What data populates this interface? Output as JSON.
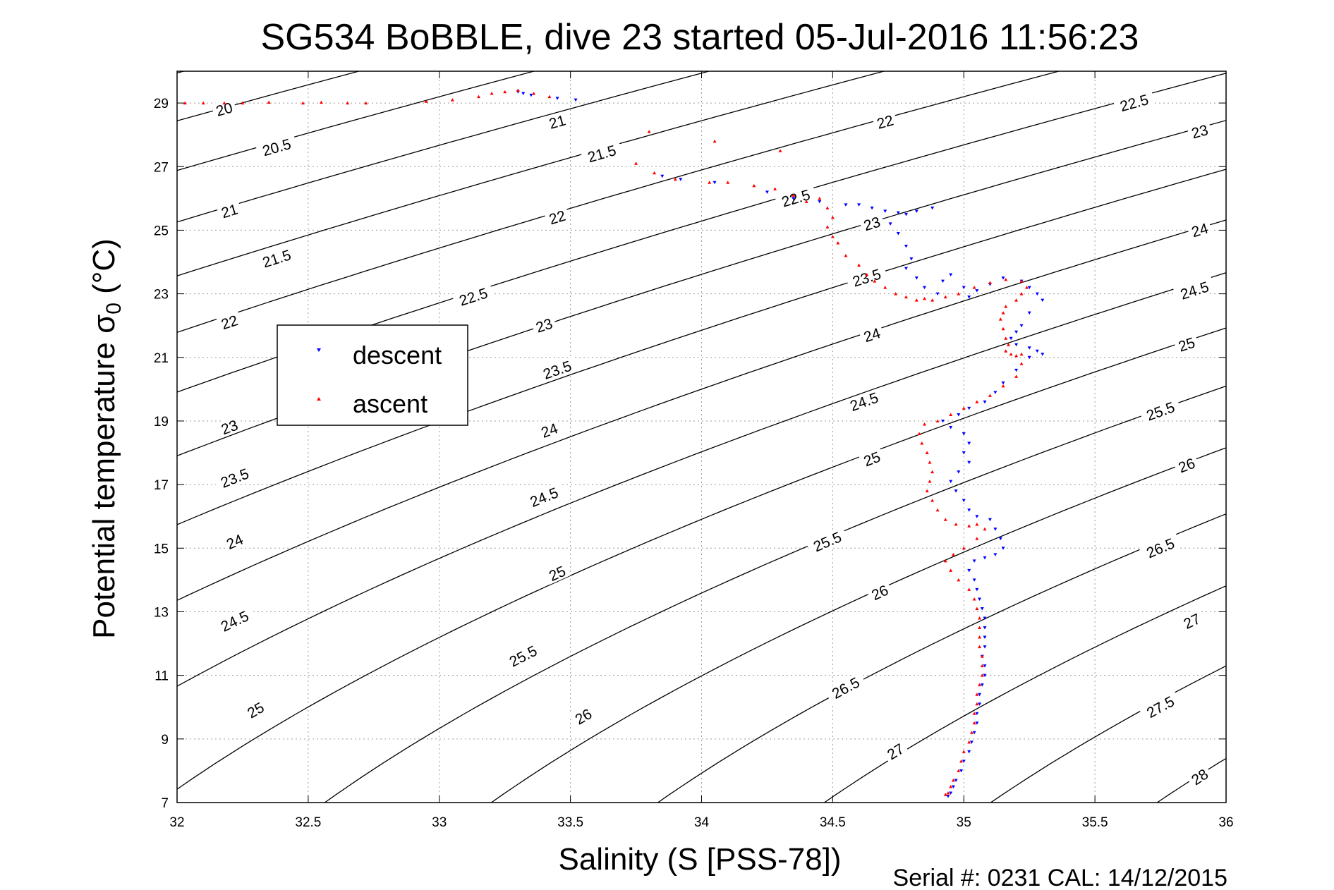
{
  "chart_data": {
    "type": "scatter",
    "title": "SG534 BoBBLE, dive 23 started 05-Jul-2016 11:56:23",
    "xlabel": "Salinity (S [PSS-78])",
    "ylabel": "Potential temperature σ",
    "ylabel_sub": "0",
    "ylabel_unit": " (°C)",
    "xlim": [
      32,
      36
    ],
    "ylim": [
      7,
      30
    ],
    "xticks": [
      "32",
      "32.5",
      "33",
      "33.5",
      "34",
      "34.5",
      "35",
      "35.5",
      "36"
    ],
    "yticks": [
      "7",
      "9",
      "11",
      "13",
      "15",
      "17",
      "19",
      "21",
      "23",
      "25",
      "27",
      "29"
    ],
    "grid": true,
    "legend_position": "upper-left",
    "series": [
      {
        "name": "descent",
        "color": "#0000ff",
        "marker": "triangle-down",
        "points": [
          [
            33.3,
            29.35
          ],
          [
            33.32,
            29.3
          ],
          [
            33.35,
            29.25
          ],
          [
            33.45,
            29.15
          ],
          [
            33.52,
            29.1
          ],
          [
            33.85,
            26.7
          ],
          [
            33.92,
            26.6
          ],
          [
            34.05,
            26.5
          ],
          [
            34.25,
            26.2
          ],
          [
            34.35,
            26.0
          ],
          [
            34.45,
            25.9
          ],
          [
            34.55,
            25.8
          ],
          [
            34.6,
            25.8
          ],
          [
            34.65,
            25.7
          ],
          [
            34.7,
            25.6
          ],
          [
            34.75,
            25.55
          ],
          [
            34.82,
            25.6
          ],
          [
            34.88,
            25.7
          ],
          [
            34.78,
            25.5
          ],
          [
            34.72,
            25.2
          ],
          [
            34.75,
            24.9
          ],
          [
            34.78,
            24.5
          ],
          [
            34.8,
            24.1
          ],
          [
            34.78,
            23.8
          ],
          [
            34.82,
            23.5
          ],
          [
            34.85,
            23.2
          ],
          [
            34.9,
            23.0
          ],
          [
            34.92,
            23.4
          ],
          [
            34.95,
            23.6
          ],
          [
            35.0,
            23.2
          ],
          [
            35.02,
            22.9
          ],
          [
            35.05,
            23.1
          ],
          [
            35.1,
            23.3
          ],
          [
            35.15,
            23.5
          ],
          [
            35.22,
            23.4
          ],
          [
            35.25,
            23.2
          ],
          [
            35.28,
            23.0
          ],
          [
            35.3,
            22.8
          ],
          [
            35.25,
            22.4
          ],
          [
            35.22,
            22.0
          ],
          [
            35.2,
            21.8
          ],
          [
            35.18,
            21.6
          ],
          [
            35.2,
            21.4
          ],
          [
            35.25,
            21.3
          ],
          [
            35.28,
            21.2
          ],
          [
            35.3,
            21.1
          ],
          [
            35.25,
            21.0
          ],
          [
            35.2,
            20.6
          ],
          [
            35.15,
            20.2
          ],
          [
            35.12,
            19.9
          ],
          [
            35.08,
            19.6
          ],
          [
            35.02,
            19.4
          ],
          [
            34.98,
            19.2
          ],
          [
            34.92,
            19.0
          ],
          [
            34.95,
            18.8
          ],
          [
            35.0,
            18.6
          ],
          [
            35.02,
            18.3
          ],
          [
            35.0,
            18.0
          ],
          [
            35.02,
            17.7
          ],
          [
            34.98,
            17.4
          ],
          [
            34.95,
            17.1
          ],
          [
            34.97,
            16.8
          ],
          [
            35.0,
            16.5
          ],
          [
            35.02,
            16.2
          ],
          [
            35.05,
            16.0
          ],
          [
            35.1,
            15.9
          ],
          [
            35.12,
            15.6
          ],
          [
            35.14,
            15.3
          ],
          [
            35.15,
            15.0
          ],
          [
            35.12,
            14.8
          ],
          [
            35.08,
            14.7
          ],
          [
            35.04,
            14.6
          ],
          [
            35.02,
            14.3
          ],
          [
            35.04,
            14.0
          ],
          [
            35.05,
            13.7
          ],
          [
            35.06,
            13.4
          ],
          [
            35.07,
            13.1
          ],
          [
            35.08,
            12.8
          ],
          [
            35.08,
            12.5
          ],
          [
            35.08,
            12.2
          ],
          [
            35.08,
            11.9
          ],
          [
            35.07,
            11.6
          ],
          [
            35.08,
            11.3
          ],
          [
            35.08,
            11.0
          ],
          [
            35.07,
            10.7
          ],
          [
            35.06,
            10.4
          ],
          [
            35.06,
            10.1
          ],
          [
            35.05,
            9.8
          ],
          [
            35.05,
            9.5
          ],
          [
            35.04,
            9.2
          ],
          [
            35.03,
            8.9
          ],
          [
            35.02,
            8.6
          ],
          [
            35.0,
            8.3
          ],
          [
            34.99,
            8.0
          ],
          [
            34.97,
            7.7
          ],
          [
            34.96,
            7.5
          ],
          [
            34.95,
            7.3
          ],
          [
            34.94,
            7.2
          ]
        ]
      },
      {
        "name": "ascent",
        "color": "#ff0000",
        "marker": "triangle-up",
        "points": [
          [
            32.03,
            29.0
          ],
          [
            32.1,
            29.0
          ],
          [
            32.18,
            29.0
          ],
          [
            32.25,
            29.0
          ],
          [
            32.35,
            29.02
          ],
          [
            32.48,
            29.0
          ],
          [
            32.55,
            29.02
          ],
          [
            32.65,
            29.0
          ],
          [
            32.72,
            29.0
          ],
          [
            32.95,
            29.05
          ],
          [
            33.05,
            29.1
          ],
          [
            33.15,
            29.2
          ],
          [
            33.2,
            29.3
          ],
          [
            33.25,
            29.35
          ],
          [
            33.3,
            29.4
          ],
          [
            33.36,
            29.3
          ],
          [
            33.42,
            29.2
          ],
          [
            33.75,
            27.1
          ],
          [
            33.8,
            28.1
          ],
          [
            33.82,
            26.8
          ],
          [
            33.9,
            26.6
          ],
          [
            34.03,
            26.5
          ],
          [
            34.05,
            27.8
          ],
          [
            34.1,
            26.5
          ],
          [
            34.2,
            26.4
          ],
          [
            34.28,
            26.3
          ],
          [
            34.3,
            27.5
          ],
          [
            34.35,
            26.1
          ],
          [
            34.4,
            25.9
          ],
          [
            34.45,
            26.0
          ],
          [
            34.48,
            25.7
          ],
          [
            34.5,
            25.4
          ],
          [
            34.48,
            25.1
          ],
          [
            34.5,
            24.8
          ],
          [
            34.52,
            24.6
          ],
          [
            34.55,
            24.2
          ],
          [
            34.6,
            23.9
          ],
          [
            34.63,
            23.6
          ],
          [
            34.66,
            23.4
          ],
          [
            34.7,
            23.2
          ],
          [
            34.74,
            23.0
          ],
          [
            34.78,
            22.9
          ],
          [
            34.82,
            22.8
          ],
          [
            34.85,
            22.85
          ],
          [
            34.88,
            22.8
          ],
          [
            34.93,
            22.9
          ],
          [
            34.98,
            23.0
          ],
          [
            35.04,
            23.2
          ],
          [
            35.1,
            23.35
          ],
          [
            35.16,
            23.45
          ],
          [
            35.22,
            23.4
          ],
          [
            35.24,
            23.2
          ],
          [
            35.22,
            23.0
          ],
          [
            35.2,
            22.8
          ],
          [
            35.16,
            22.6
          ],
          [
            35.15,
            22.4
          ],
          [
            35.14,
            22.2
          ],
          [
            35.15,
            21.9
          ],
          [
            35.16,
            21.6
          ],
          [
            35.17,
            21.4
          ],
          [
            35.16,
            21.2
          ],
          [
            35.18,
            21.1
          ],
          [
            35.2,
            21.05
          ],
          [
            35.22,
            21.1
          ],
          [
            35.22,
            20.8
          ],
          [
            35.2,
            20.4
          ],
          [
            35.15,
            20.1
          ],
          [
            35.1,
            19.8
          ],
          [
            35.05,
            19.6
          ],
          [
            35.0,
            19.4
          ],
          [
            34.95,
            19.2
          ],
          [
            34.9,
            19.0
          ],
          [
            34.85,
            18.9
          ],
          [
            34.83,
            18.6
          ],
          [
            34.84,
            18.3
          ],
          [
            34.86,
            18.0
          ],
          [
            34.87,
            17.7
          ],
          [
            34.88,
            17.4
          ],
          [
            34.87,
            17.1
          ],
          [
            34.86,
            16.8
          ],
          [
            34.88,
            16.5
          ],
          [
            34.9,
            16.2
          ],
          [
            34.93,
            15.9
          ],
          [
            34.97,
            15.75
          ],
          [
            35.02,
            15.7
          ],
          [
            35.05,
            15.75
          ],
          [
            35.08,
            15.6
          ],
          [
            35.05,
            15.3
          ],
          [
            35.0,
            15.0
          ],
          [
            34.96,
            14.8
          ],
          [
            34.93,
            14.6
          ],
          [
            34.95,
            14.3
          ],
          [
            34.98,
            14.0
          ],
          [
            35.02,
            13.7
          ],
          [
            35.04,
            13.4
          ],
          [
            35.05,
            13.1
          ],
          [
            35.06,
            12.8
          ],
          [
            35.06,
            12.5
          ],
          [
            35.06,
            12.2
          ],
          [
            35.06,
            11.9
          ],
          [
            35.07,
            11.6
          ],
          [
            35.07,
            11.3
          ],
          [
            35.07,
            11.0
          ],
          [
            35.06,
            10.7
          ],
          [
            35.05,
            10.4
          ],
          [
            35.05,
            10.1
          ],
          [
            35.04,
            9.8
          ],
          [
            35.04,
            9.5
          ],
          [
            35.03,
            9.2
          ],
          [
            35.02,
            8.9
          ],
          [
            35.0,
            8.6
          ],
          [
            34.99,
            8.3
          ],
          [
            34.98,
            8.0
          ],
          [
            34.96,
            7.7
          ],
          [
            34.95,
            7.5
          ],
          [
            34.94,
            7.3
          ],
          [
            34.93,
            7.25
          ]
        ]
      }
    ],
    "contours": [
      {
        "label": "20",
        "label_at": [
          32.18,
          28.8
        ]
      },
      {
        "label": "20.5",
        "label_at": [
          32.38,
          27.6
        ]
      },
      {
        "label": "21",
        "label_at": [
          33.45,
          28.4
        ]
      },
      {
        "label": "21",
        "label_at": [
          32.2,
          25.6
        ]
      },
      {
        "label": "21.5",
        "label_at": [
          33.62,
          27.4
        ]
      },
      {
        "label": "21.5",
        "label_at": [
          32.38,
          24.1
        ]
      },
      {
        "label": "22",
        "label_at": [
          34.7,
          28.4
        ]
      },
      {
        "label": "22",
        "label_at": [
          33.45,
          25.4
        ]
      },
      {
        "label": "22",
        "label_at": [
          32.2,
          22.1
        ]
      },
      {
        "label": "22.5",
        "label_at": [
          35.65,
          29.0
        ]
      },
      {
        "label": "22.5",
        "label_at": [
          34.36,
          26.0
        ]
      },
      {
        "label": "22.5",
        "label_at": [
          33.13,
          22.9
        ]
      },
      {
        "label": "23",
        "label_at": [
          35.9,
          28.1
        ]
      },
      {
        "label": "23",
        "label_at": [
          34.65,
          25.2
        ]
      },
      {
        "label": "23",
        "label_at": [
          33.4,
          22.0
        ]
      },
      {
        "label": "23",
        "label_at": [
          32.2,
          18.8
        ]
      },
      {
        "label": "23.5",
        "label_at": [
          34.63,
          23.5
        ]
      },
      {
        "label": "23.5",
        "label_at": [
          33.45,
          20.6
        ]
      },
      {
        "label": "23.5",
        "label_at": [
          32.22,
          17.2
        ]
      },
      {
        "label": "24",
        "label_at": [
          35.9,
          25.0
        ]
      },
      {
        "label": "24",
        "label_at": [
          34.65,
          21.7
        ]
      },
      {
        "label": "24",
        "label_at": [
          33.42,
          18.7
        ]
      },
      {
        "label": "24",
        "label_at": [
          32.22,
          15.2
        ]
      },
      {
        "label": "24.5",
        "label_at": [
          35.88,
          23.1
        ]
      },
      {
        "label": "24.5",
        "label_at": [
          34.62,
          19.6
        ]
      },
      {
        "label": "24.5",
        "label_at": [
          33.4,
          16.6
        ]
      },
      {
        "label": "24.5",
        "label_at": [
          32.22,
          12.7
        ]
      },
      {
        "label": "25",
        "label_at": [
          35.85,
          21.4
        ]
      },
      {
        "label": "25",
        "label_at": [
          34.65,
          17.8
        ]
      },
      {
        "label": "25",
        "label_at": [
          33.45,
          14.2
        ]
      },
      {
        "label": "25",
        "label_at": [
          32.3,
          9.9
        ]
      },
      {
        "label": "25.5",
        "label_at": [
          35.75,
          19.3
        ]
      },
      {
        "label": "25.5",
        "label_at": [
          34.48,
          15.2
        ]
      },
      {
        "label": "25.5",
        "label_at": [
          33.32,
          11.6
        ]
      },
      {
        "label": "26",
        "label_at": [
          35.85,
          17.6
        ]
      },
      {
        "label": "26",
        "label_at": [
          34.68,
          13.6
        ]
      },
      {
        "label": "26",
        "label_at": [
          33.55,
          9.7
        ]
      },
      {
        "label": "26.5",
        "label_at": [
          35.75,
          15.0
        ]
      },
      {
        "label": "26.5",
        "label_at": [
          34.55,
          10.6
        ]
      },
      {
        "label": "27",
        "label_at": [
          35.87,
          12.7
        ]
      },
      {
        "label": "27",
        "label_at": [
          34.74,
          8.6
        ]
      },
      {
        "label": "27.5",
        "label_at": [
          35.75,
          10.0
        ]
      },
      {
        "label": "28",
        "label_at": [
          35.9,
          7.8
        ]
      }
    ]
  },
  "footer": {
    "serial_text": "Serial #: 0231  CAL: 14/12/2015"
  }
}
